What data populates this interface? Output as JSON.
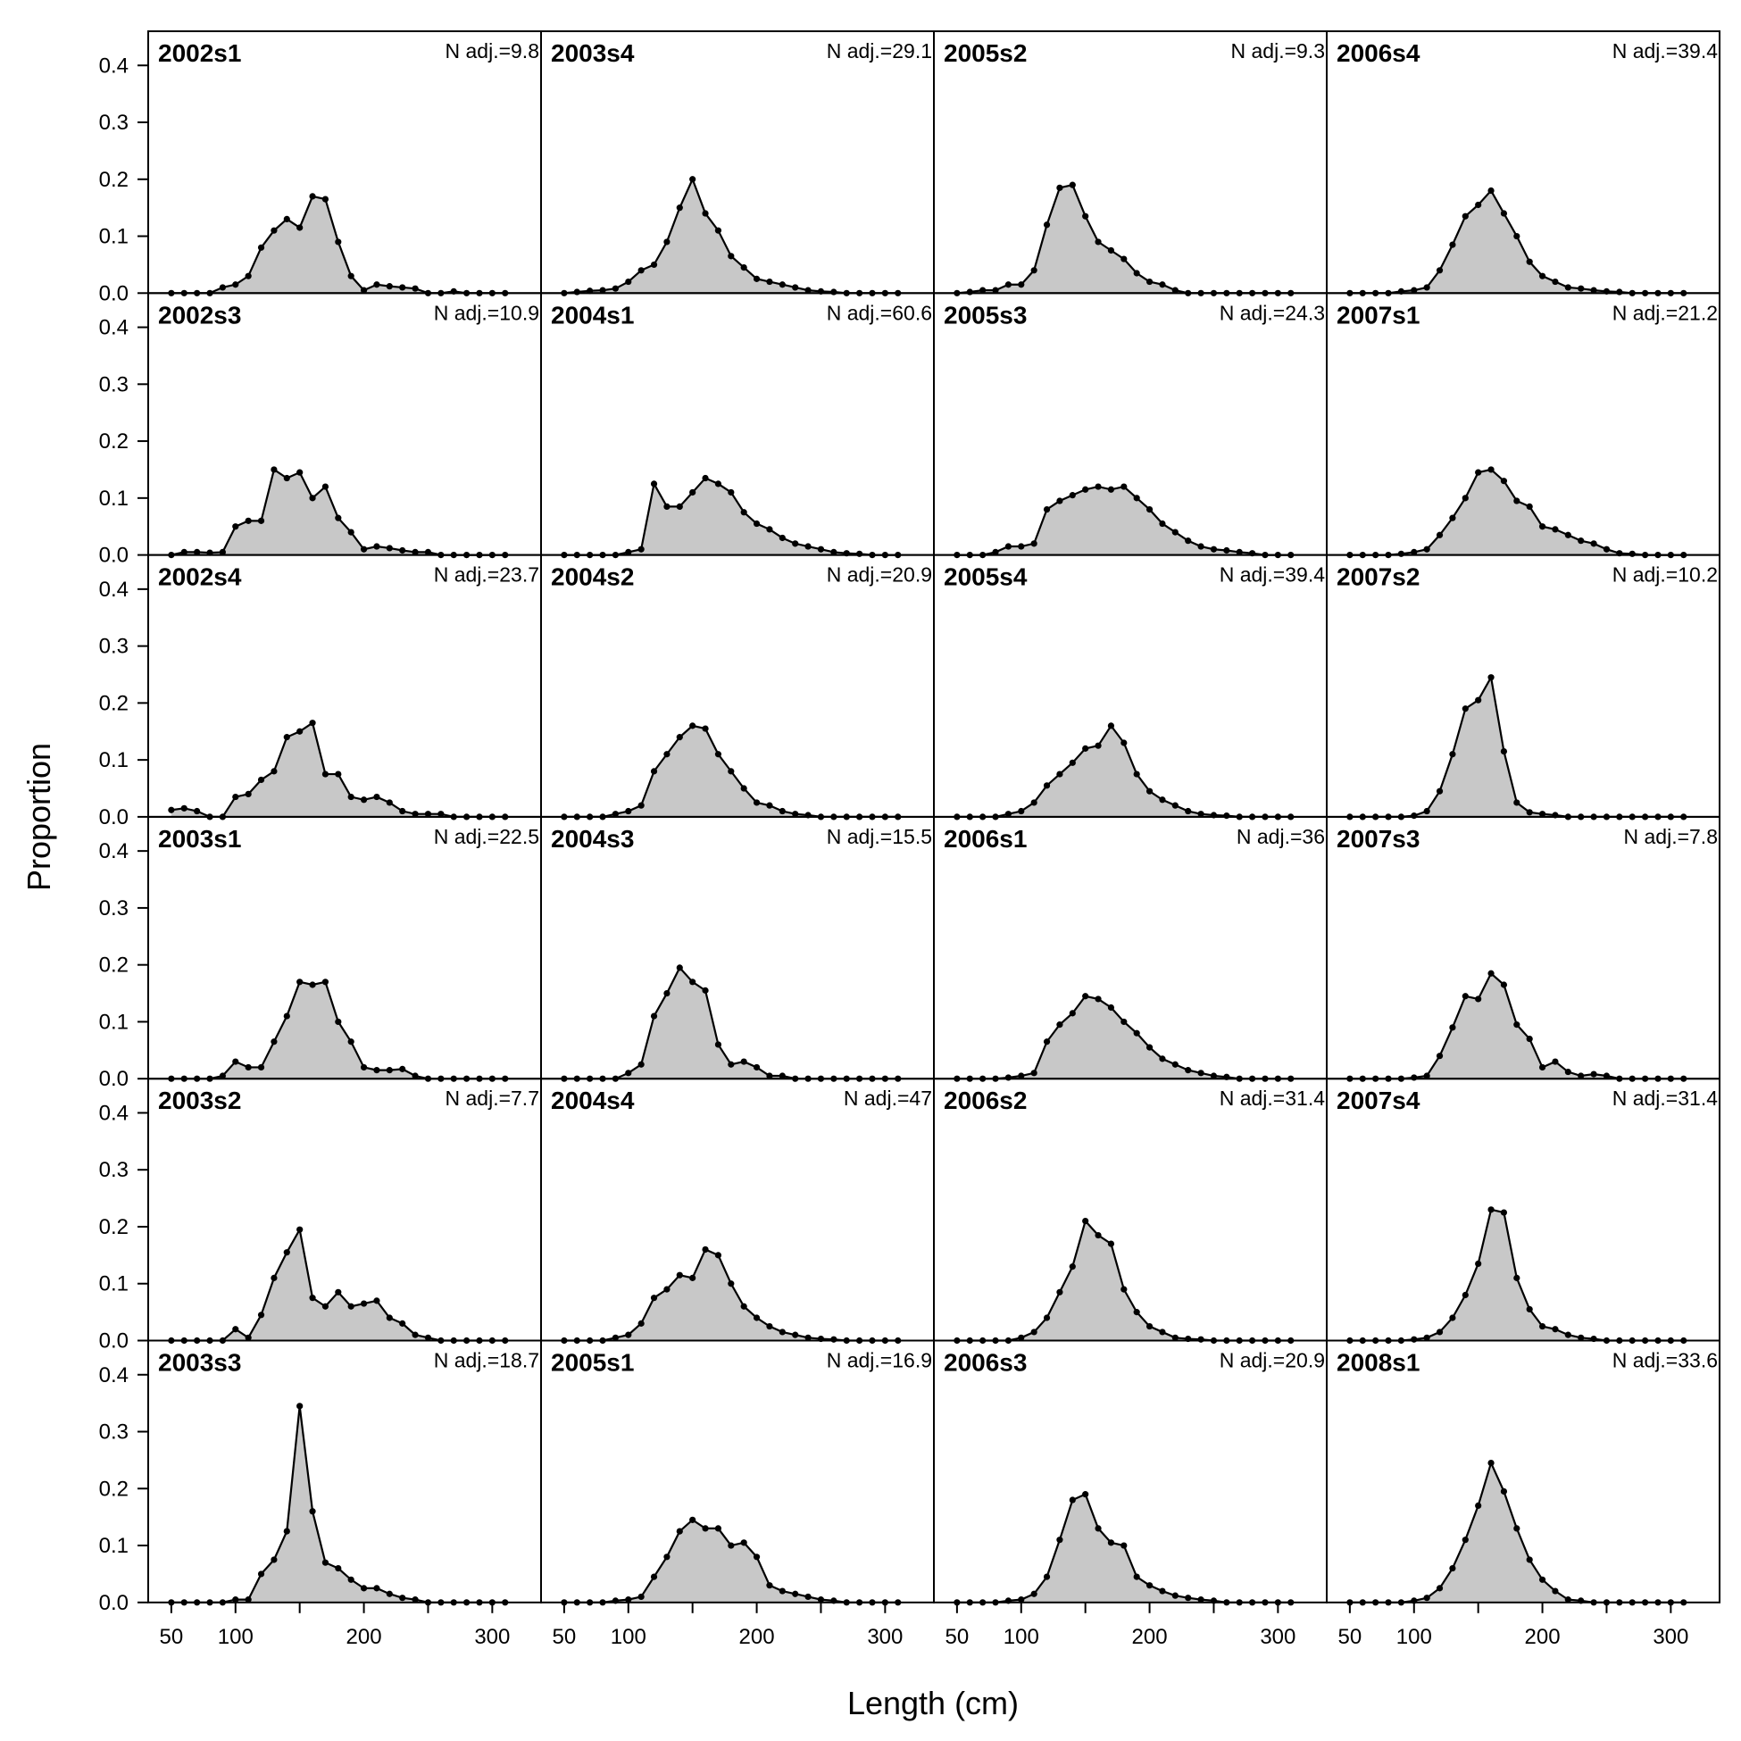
{
  "chart_data": {
    "type": "area",
    "layout": "6 rows x 4 columns, panels ordered down each column",
    "xlabel": "Length (cm)",
    "ylabel": "Proportion",
    "xlim": [
      32,
      338
    ],
    "ylim": [
      0,
      0.46
    ],
    "xticks": [
      50,
      100,
      200,
      300
    ],
    "xticks_minor": [
      150,
      250
    ],
    "yticks": [
      0.0,
      0.1,
      0.2,
      0.3,
      0.4
    ],
    "fill_color": "#c8c8c8",
    "line_color": "#000000",
    "x": [
      50,
      60,
      70,
      80,
      90,
      100,
      110,
      120,
      130,
      140,
      150,
      160,
      170,
      180,
      190,
      200,
      210,
      220,
      230,
      240,
      250,
      260,
      270,
      280,
      290,
      300,
      310
    ],
    "panels": [
      {
        "title": "2002s1",
        "n_adj": "N adj.=9.8",
        "values": [
          0,
          0,
          0,
          0,
          0.01,
          0.015,
          0.03,
          0.08,
          0.11,
          0.13,
          0.115,
          0.17,
          0.165,
          0.09,
          0.03,
          0.005,
          0.015,
          0.012,
          0.01,
          0.008,
          0,
          0,
          0.003,
          0,
          0,
          0,
          0
        ]
      },
      {
        "title": "2002s3",
        "n_adj": "N adj.=10.9",
        "values": [
          0,
          0.005,
          0.005,
          0.004,
          0.005,
          0.05,
          0.06,
          0.06,
          0.15,
          0.135,
          0.145,
          0.1,
          0.12,
          0.065,
          0.04,
          0.01,
          0.015,
          0.012,
          0.008,
          0.005,
          0.005,
          0,
          0,
          0,
          0,
          0,
          0
        ]
      },
      {
        "title": "2002s4",
        "n_adj": "N adj.=23.7",
        "values": [
          0.012,
          0.015,
          0.01,
          0,
          0,
          0.035,
          0.04,
          0.065,
          0.08,
          0.14,
          0.15,
          0.165,
          0.075,
          0.075,
          0.035,
          0.03,
          0.035,
          0.025,
          0.01,
          0.005,
          0.005,
          0.005,
          0,
          0,
          0,
          0,
          0
        ]
      },
      {
        "title": "2003s1",
        "n_adj": "N adj.=22.5",
        "values": [
          0,
          0,
          0,
          0,
          0.005,
          0.03,
          0.02,
          0.02,
          0.065,
          0.11,
          0.17,
          0.165,
          0.17,
          0.1,
          0.065,
          0.02,
          0.015,
          0.015,
          0.017,
          0.005,
          0,
          0,
          0,
          0,
          0,
          0,
          0
        ]
      },
      {
        "title": "2003s2",
        "n_adj": "N adj.=7.7",
        "values": [
          0,
          0,
          0,
          0,
          0,
          0.02,
          0.005,
          0.045,
          0.11,
          0.155,
          0.195,
          0.075,
          0.06,
          0.085,
          0.06,
          0.065,
          0.07,
          0.04,
          0.03,
          0.01,
          0.005,
          0,
          0,
          0,
          0,
          0,
          0
        ]
      },
      {
        "title": "2003s3",
        "n_adj": "N adj.=18.7",
        "values": [
          0,
          0,
          0,
          0,
          0,
          0.005,
          0.005,
          0.05,
          0.075,
          0.125,
          0.345,
          0.16,
          0.07,
          0.06,
          0.04,
          0.025,
          0.025,
          0.015,
          0.008,
          0.005,
          0,
          0,
          0,
          0,
          0,
          0,
          0
        ]
      },
      {
        "title": "2003s4",
        "n_adj": "N adj.=29.1",
        "values": [
          0,
          0.002,
          0.004,
          0.005,
          0.008,
          0.02,
          0.04,
          0.05,
          0.09,
          0.15,
          0.2,
          0.14,
          0.11,
          0.065,
          0.045,
          0.025,
          0.02,
          0.015,
          0.01,
          0.005,
          0.003,
          0.002,
          0,
          0,
          0,
          0,
          0
        ]
      },
      {
        "title": "2004s1",
        "n_adj": "N adj.=60.6",
        "values": [
          0,
          0,
          0,
          0,
          0,
          0.005,
          0.01,
          0.125,
          0.085,
          0.085,
          0.11,
          0.135,
          0.125,
          0.11,
          0.075,
          0.055,
          0.045,
          0.03,
          0.02,
          0.015,
          0.01,
          0.005,
          0.003,
          0.002,
          0,
          0,
          0
        ]
      },
      {
        "title": "2004s2",
        "n_adj": "N adj.=20.9",
        "values": [
          0,
          0,
          0,
          0,
          0.005,
          0.01,
          0.02,
          0.08,
          0.11,
          0.14,
          0.16,
          0.155,
          0.11,
          0.08,
          0.05,
          0.025,
          0.02,
          0.01,
          0.005,
          0.003,
          0,
          0,
          0,
          0,
          0,
          0,
          0
        ]
      },
      {
        "title": "2004s3",
        "n_adj": "N adj.=15.5",
        "values": [
          0,
          0,
          0,
          0,
          0,
          0.01,
          0.025,
          0.11,
          0.15,
          0.195,
          0.17,
          0.155,
          0.06,
          0.025,
          0.03,
          0.02,
          0.005,
          0.005,
          0,
          0,
          0,
          0,
          0,
          0,
          0,
          0,
          0
        ]
      },
      {
        "title": "2004s4",
        "n_adj": "N adj.=47",
        "values": [
          0,
          0,
          0,
          0,
          0.005,
          0.01,
          0.03,
          0.075,
          0.09,
          0.115,
          0.11,
          0.16,
          0.15,
          0.1,
          0.06,
          0.04,
          0.025,
          0.015,
          0.01,
          0.005,
          0.003,
          0.002,
          0,
          0,
          0,
          0,
          0
        ]
      },
      {
        "title": "2005s1",
        "n_adj": "N adj.=16.9",
        "values": [
          0,
          0,
          0,
          0,
          0.003,
          0.005,
          0.01,
          0.045,
          0.08,
          0.125,
          0.145,
          0.13,
          0.13,
          0.1,
          0.105,
          0.08,
          0.03,
          0.02,
          0.015,
          0.01,
          0.005,
          0.003,
          0,
          0,
          0,
          0,
          0
        ]
      },
      {
        "title": "2005s2",
        "n_adj": "N adj.=9.3",
        "values": [
          0,
          0.002,
          0.005,
          0.005,
          0.015,
          0.015,
          0.04,
          0.12,
          0.185,
          0.19,
          0.135,
          0.09,
          0.075,
          0.06,
          0.035,
          0.02,
          0.015,
          0.005,
          0,
          0,
          0,
          0,
          0,
          0,
          0,
          0,
          0
        ]
      },
      {
        "title": "2005s3",
        "n_adj": "N adj.=24.3",
        "values": [
          0,
          0,
          0,
          0.005,
          0.015,
          0.015,
          0.02,
          0.08,
          0.095,
          0.105,
          0.115,
          0.12,
          0.115,
          0.12,
          0.1,
          0.08,
          0.055,
          0.04,
          0.025,
          0.015,
          0.01,
          0.008,
          0.005,
          0.003,
          0,
          0,
          0
        ]
      },
      {
        "title": "2005s4",
        "n_adj": "N adj.=39.4",
        "values": [
          0,
          0,
          0,
          0,
          0.005,
          0.01,
          0.025,
          0.055,
          0.075,
          0.095,
          0.12,
          0.125,
          0.16,
          0.13,
          0.075,
          0.045,
          0.03,
          0.02,
          0.01,
          0.005,
          0.003,
          0.002,
          0,
          0,
          0,
          0,
          0
        ]
      },
      {
        "title": "2006s1",
        "n_adj": "N adj.=36",
        "values": [
          0,
          0,
          0,
          0,
          0.002,
          0.005,
          0.01,
          0.065,
          0.095,
          0.115,
          0.145,
          0.14,
          0.125,
          0.1,
          0.08,
          0.055,
          0.035,
          0.025,
          0.015,
          0.01,
          0.005,
          0.003,
          0,
          0,
          0,
          0,
          0
        ]
      },
      {
        "title": "2006s2",
        "n_adj": "N adj.=31.4",
        "values": [
          0,
          0,
          0,
          0,
          0,
          0.005,
          0.015,
          0.04,
          0.085,
          0.13,
          0.21,
          0.185,
          0.17,
          0.09,
          0.05,
          0.025,
          0.015,
          0.005,
          0.003,
          0.002,
          0,
          0,
          0,
          0,
          0,
          0,
          0
        ]
      },
      {
        "title": "2006s3",
        "n_adj": "N adj.=20.9",
        "values": [
          0,
          0,
          0,
          0,
          0.003,
          0.005,
          0.015,
          0.045,
          0.11,
          0.18,
          0.19,
          0.13,
          0.105,
          0.1,
          0.045,
          0.03,
          0.02,
          0.012,
          0.008,
          0.005,
          0.003,
          0,
          0,
          0,
          0,
          0,
          0
        ]
      },
      {
        "title": "2006s4",
        "n_adj": "N adj.=39.4",
        "values": [
          0,
          0,
          0,
          0,
          0.003,
          0.005,
          0.01,
          0.04,
          0.085,
          0.135,
          0.155,
          0.18,
          0.14,
          0.1,
          0.055,
          0.03,
          0.02,
          0.01,
          0.008,
          0.005,
          0.003,
          0.002,
          0,
          0,
          0,
          0,
          0
        ]
      },
      {
        "title": "2007s1",
        "n_adj": "N adj.=21.2",
        "values": [
          0,
          0,
          0,
          0,
          0.002,
          0.005,
          0.01,
          0.035,
          0.065,
          0.1,
          0.145,
          0.15,
          0.13,
          0.095,
          0.085,
          0.05,
          0.045,
          0.035,
          0.025,
          0.02,
          0.01,
          0.003,
          0.002,
          0,
          0,
          0,
          0
        ]
      },
      {
        "title": "2007s2",
        "n_adj": "N adj.=10.2",
        "values": [
          0,
          0,
          0,
          0,
          0,
          0.002,
          0.01,
          0.045,
          0.11,
          0.19,
          0.205,
          0.245,
          0.115,
          0.025,
          0.008,
          0.005,
          0.003,
          0,
          0,
          0,
          0,
          0,
          0,
          0,
          0,
          0,
          0
        ]
      },
      {
        "title": "2007s3",
        "n_adj": "N adj.=7.8",
        "values": [
          0,
          0,
          0,
          0,
          0,
          0.002,
          0.005,
          0.04,
          0.09,
          0.145,
          0.14,
          0.185,
          0.165,
          0.095,
          0.07,
          0.02,
          0.03,
          0.012,
          0.005,
          0.008,
          0.005,
          0,
          0,
          0,
          0,
          0,
          0
        ]
      },
      {
        "title": "2007s4",
        "n_adj": "N adj.=31.4",
        "values": [
          0,
          0,
          0,
          0,
          0,
          0.002,
          0.005,
          0.015,
          0.04,
          0.08,
          0.135,
          0.23,
          0.225,
          0.11,
          0.055,
          0.025,
          0.02,
          0.01,
          0.005,
          0.003,
          0,
          0,
          0,
          0,
          0,
          0,
          0
        ]
      },
      {
        "title": "2008s1",
        "n_adj": "N adj.=33.6",
        "values": [
          0,
          0,
          0,
          0,
          0,
          0.003,
          0.008,
          0.025,
          0.06,
          0.11,
          0.17,
          0.245,
          0.195,
          0.13,
          0.075,
          0.04,
          0.02,
          0.005,
          0.003,
          0,
          0,
          0,
          0,
          0,
          0,
          0,
          0
        ]
      }
    ]
  }
}
